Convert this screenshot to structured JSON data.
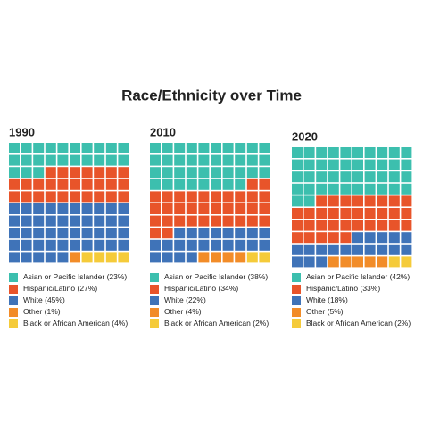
{
  "title": "Race/Ethnicity over Time",
  "chart_data": [
    {
      "type": "waffle",
      "title": "1990",
      "categories": [
        "Asian or Pacific Islander",
        "Hispanic/Latino",
        "White",
        "Other",
        "Black or African American"
      ],
      "values": [
        23,
        27,
        45,
        1,
        4
      ],
      "value_labels": [
        "(23%)",
        "(27%)",
        "(45%)",
        "(1%)",
        "(4%)"
      ],
      "colors": [
        "#3cbfae",
        "#e8542a",
        "#3f73b8",
        "#f28c28",
        "#f5cb3a"
      ]
    },
    {
      "type": "waffle",
      "title": "2010",
      "categories": [
        "Asian or Pacific Islander",
        "Hispanic/Latino",
        "White",
        "Other",
        "Black or African American"
      ],
      "values": [
        38,
        34,
        22,
        4,
        2
      ],
      "value_labels": [
        "(38%)",
        "(34%)",
        "(22%)",
        "(4%)",
        "(2%)"
      ],
      "colors": [
        "#3cbfae",
        "#e8542a",
        "#3f73b8",
        "#f28c28",
        "#f5cb3a"
      ]
    },
    {
      "type": "waffle",
      "title": "2020",
      "categories": [
        "Asian or Pacific Islander",
        "Hispanic/Latino",
        "White",
        "Other",
        "Black or African American"
      ],
      "values": [
        42,
        33,
        18,
        5,
        2
      ],
      "value_labels": [
        "(42%)",
        "(33%)",
        "(18%)",
        "(5%)",
        "(2%)"
      ],
      "colors": [
        "#3cbfae",
        "#e8542a",
        "#3f73b8",
        "#f28c28",
        "#f5cb3a"
      ]
    }
  ]
}
